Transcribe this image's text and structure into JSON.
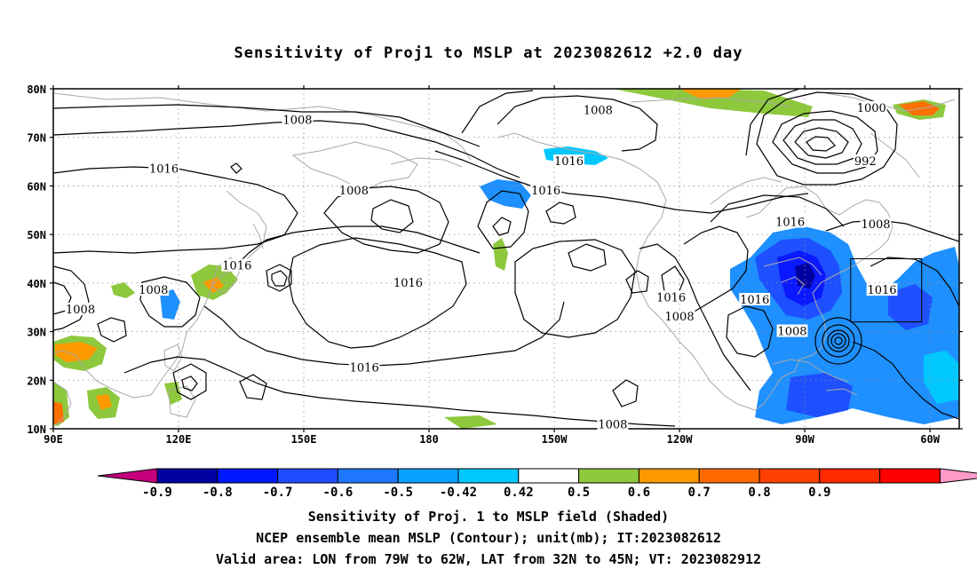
{
  "title": "Sensitivity of Proj1 to MSLP at 2023082612 +2.0 day",
  "map": {
    "lat_labels": [
      "80N",
      "70N",
      "60N",
      "50N",
      "40N",
      "30N",
      "20N",
      "10N"
    ],
    "lon_labels": [
      "90E",
      "120E",
      "150E",
      "180",
      "150W",
      "120W",
      "90W",
      "60W"
    ],
    "lat_range": [
      10,
      80
    ],
    "lon_range_east": [
      90,
      307
    ],
    "grid": "dotted",
    "contour_labels": [
      {
        "text": "1008",
        "lon": 148.5,
        "lat": 73.5
      },
      {
        "text": "1008",
        "lon": 220.5,
        "lat": 75.5
      },
      {
        "text": "1000",
        "lon": 286,
        "lat": 76
      },
      {
        "text": "992",
        "lon": 284.5,
        "lat": 65
      },
      {
        "text": "1016",
        "lon": 116.5,
        "lat": 63.5
      },
      {
        "text": "1016",
        "lon": 213.5,
        "lat": 65
      },
      {
        "text": "1008",
        "lon": 162,
        "lat": 59
      },
      {
        "text": "1016",
        "lon": 208,
        "lat": 59
      },
      {
        "text": "1016",
        "lon": 266.5,
        "lat": 52.5
      },
      {
        "text": "1008",
        "lon": 287,
        "lat": 52
      },
      {
        "text": "1016",
        "lon": 134,
        "lat": 43.5
      },
      {
        "text": "1016",
        "lon": 175,
        "lat": 40
      },
      {
        "text": "1008",
        "lon": 114,
        "lat": 38.5
      },
      {
        "text": "1008",
        "lon": 96.5,
        "lat": 34.5
      },
      {
        "text": "1016",
        "lon": 258,
        "lat": 36.5
      },
      {
        "text": "1016",
        "lon": 238,
        "lat": 37
      },
      {
        "text": "1016",
        "lon": 288.5,
        "lat": 38.5
      },
      {
        "text": "1008",
        "lon": 240,
        "lat": 33
      },
      {
        "text": "1008",
        "lon": 267,
        "lat": 30
      },
      {
        "text": "1016",
        "lon": 164.5,
        "lat": 22.5
      },
      {
        "text": "1008",
        "lon": 224,
        "lat": 10.8
      }
    ],
    "valid_box": {
      "lon_w": 79,
      "lon_e": 62,
      "lat_s": 32,
      "lat_n": 45
    },
    "shading_colors": {
      "neg_09": "#0000a0",
      "neg_08": "#0a19ff",
      "neg_07": "#1f50ff",
      "neg_05": "#1e90ff",
      "neg_042": "#00c8ff",
      "pos_042": "#8ec83c",
      "pos_05": "#ff9900",
      "pos_06": "#ff7000"
    }
  },
  "colorbar": {
    "labels": [
      "-0.9",
      "-0.8",
      "-0.7",
      "-0.6",
      "-0.5",
      "-0.42",
      "0.42",
      "0.5",
      "0.6",
      "0.7",
      "0.8",
      "0.9"
    ],
    "colors": [
      "#c4007d",
      "#0000a0",
      "#0018ff",
      "#1e4bff",
      "#1e78ff",
      "#0aa0ff",
      "#00c8ff",
      "#ffffff",
      "#8ec83c",
      "#ff9900",
      "#ff6a00",
      "#ff4000",
      "#ff2a00",
      "#ff0000",
      "#ff99c8"
    ]
  },
  "captions": [
    "Sensitivity of Proj. 1 to MSLP field (Shaded)",
    "NCEP ensemble mean MSLP (Contour); unit(mb); IT:2023082612",
    "Valid area: LON from 79W to 62W, LAT from 32N to 45N; VT: 2023082912"
  ]
}
